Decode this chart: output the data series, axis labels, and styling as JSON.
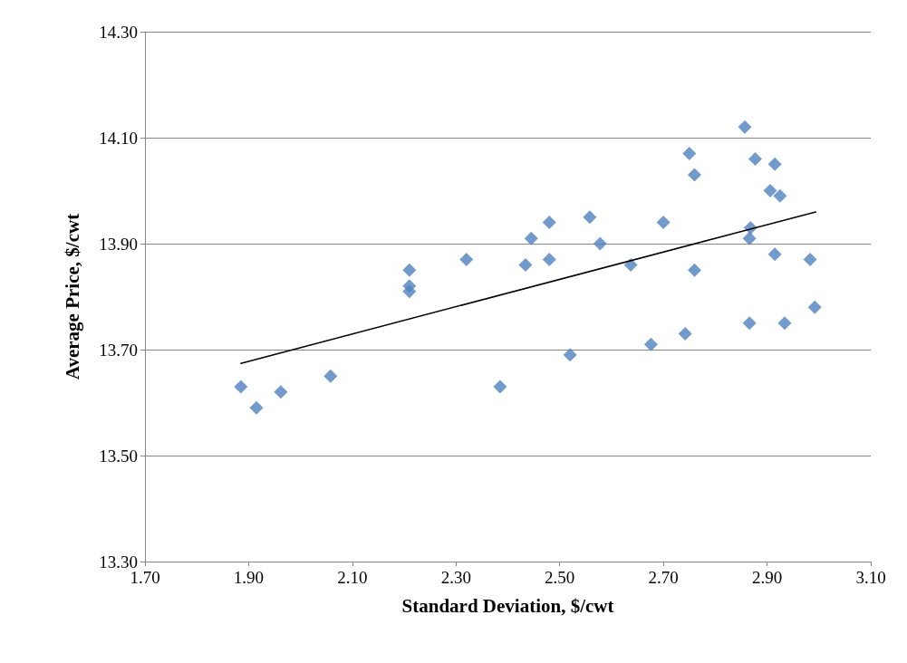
{
  "chart_data": {
    "type": "scatter",
    "xlabel": "Standard Deviation, $/cwt",
    "ylabel": "Average Price, $/cwt",
    "xlim": [
      1.7,
      3.1
    ],
    "xticks": [
      {
        "value": 1.7,
        "label": "1.70"
      },
      {
        "value": 1.9,
        "label": "1.90"
      },
      {
        "value": 2.1,
        "label": "2.10"
      },
      {
        "value": 2.3,
        "label": "2.30"
      },
      {
        "value": 2.5,
        "label": "2.50"
      },
      {
        "value": 2.7,
        "label": "2.70"
      },
      {
        "value": 2.9,
        "label": "2.90"
      },
      {
        "value": 3.1,
        "label": "3.10"
      }
    ],
    "ylim": [
      13.3,
      14.3
    ],
    "yticks": [
      {
        "value": 13.3,
        "label": "13.30"
      },
      {
        "value": 13.5,
        "label": "13.50"
      },
      {
        "value": 13.7,
        "label": "13.70"
      },
      {
        "value": 13.9,
        "label": "13.90"
      },
      {
        "value": 14.1,
        "label": "14.10"
      },
      {
        "value": 14.3,
        "label": "14.30"
      }
    ],
    "grid": "y",
    "marker": "diamond",
    "series": [
      {
        "color": "#4f81bd",
        "x": [
          1.885,
          1.915,
          1.962,
          2.058,
          2.21,
          2.21,
          2.21,
          2.32,
          2.385,
          2.434,
          2.445,
          2.48,
          2.48,
          2.52,
          2.558,
          2.578,
          2.637,
          2.676,
          2.7,
          2.742,
          2.75,
          2.76,
          2.76,
          2.857,
          2.868,
          2.866,
          2.866,
          2.877,
          2.906,
          2.915,
          2.915,
          2.925,
          2.934,
          2.983,
          2.992
        ],
        "values": [
          13.63,
          13.59,
          13.62,
          13.65,
          13.85,
          13.82,
          13.81,
          13.87,
          13.63,
          13.86,
          13.91,
          13.94,
          13.87,
          13.69,
          13.95,
          13.9,
          13.86,
          13.71,
          13.94,
          13.73,
          14.07,
          14.03,
          13.85,
          14.12,
          13.93,
          13.91,
          13.75,
          14.06,
          14.0,
          14.05,
          13.88,
          13.99,
          13.75,
          13.87,
          13.78
        ]
      },
      {
        "type": "line",
        "color": "#000000",
        "marker": "none",
        "x": [
          1.885,
          2.994
        ],
        "values": [
          13.674,
          13.96
        ]
      }
    ]
  }
}
